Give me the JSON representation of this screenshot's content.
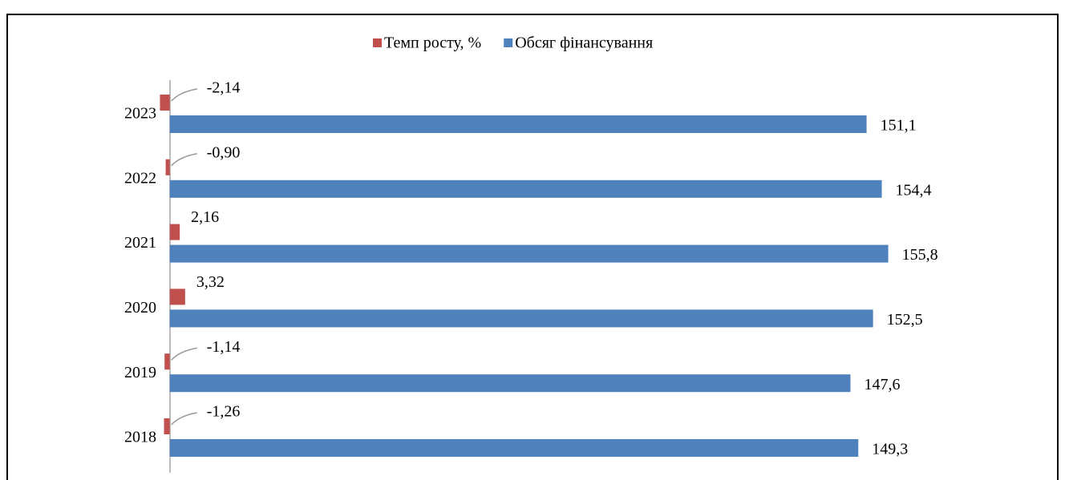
{
  "chart_data": {
    "type": "hbar",
    "categories": [
      "2018",
      "2019",
      "2020",
      "2021",
      "2022",
      "2023"
    ],
    "series": [
      {
        "name": "Темп росту, %",
        "color": "#c0504d",
        "values": [
          -1.26,
          -1.14,
          3.32,
          2.16,
          -0.9,
          -2.14
        ],
        "value_labels": [
          "-1,26",
          "-1,14",
          "3,32",
          "2,16",
          "-0,90",
          "-2,14"
        ]
      },
      {
        "name": "Обсяг фінансування",
        "color": "#4f81bd",
        "values": [
          149.3,
          147.6,
          152.5,
          155.8,
          154.4,
          151.1
        ],
        "value_labels": [
          "149,3",
          "147,6",
          "152,5",
          "155,8",
          "154,4",
          "151,1"
        ]
      }
    ],
    "xlim": [
      -5,
      175
    ],
    "legend": "top"
  }
}
